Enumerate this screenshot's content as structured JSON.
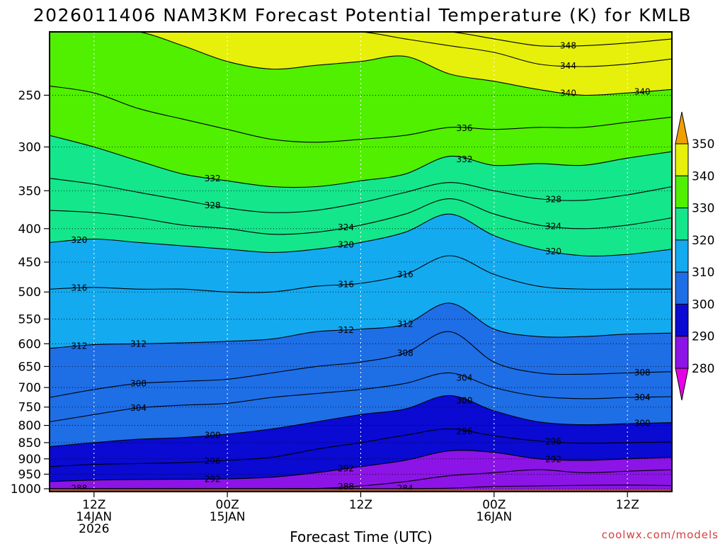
{
  "chart_data": {
    "type": "contour",
    "title": "2026011406 NAM3KM Forecast Potential Temperature (K) for KMLB",
    "xlabel": "Forecast Time (UTC)",
    "ylabel": "",
    "ylim": [
      1010,
      200
    ],
    "y_scale": "log-pressure",
    "yticks": [
      250,
      300,
      350,
      400,
      450,
      500,
      550,
      600,
      650,
      700,
      750,
      800,
      850,
      900,
      950,
      1000
    ],
    "xlim": [
      0,
      84
    ],
    "xticks": [
      {
        "hour": 6,
        "label": [
          "12Z",
          "14JAN",
          "2026"
        ]
      },
      {
        "hour": 24,
        "label": [
          "00Z",
          "15JAN"
        ]
      },
      {
        "hour": 42,
        "label": [
          "12Z"
        ]
      },
      {
        "hour": 60,
        "label": [
          "00Z",
          "16JAN"
        ]
      },
      {
        "hour": 78,
        "label": [
          "12Z"
        ]
      }
    ],
    "colorbar": {
      "levels": [
        280,
        290,
        300,
        310,
        320,
        330,
        340,
        350
      ],
      "colors": [
        "#e600e6",
        "#8c14e6",
        "#0a0ad2",
        "#1e6ee6",
        "#14aaf0",
        "#14e68c",
        "#50f000",
        "#e6f00a",
        "#f0a000"
      ],
      "extend": "both"
    },
    "contour_interval": 4,
    "surface_color": "#a0522d",
    "series": [
      {
        "theta": 284,
        "p": [
          999,
          999,
          999,
          999,
          999,
          999,
          999,
          999,
          999,
          998,
          992,
          990,
          988,
          987,
          989
        ]
      },
      {
        "theta": 288,
        "p": [
          999,
          999,
          999,
          999,
          999,
          999,
          999,
          990,
          975,
          955,
          945,
          935,
          945,
          940,
          935
        ]
      },
      {
        "theta": 292,
        "p": [
          975,
          970,
          968,
          967,
          966,
          960,
          945,
          925,
          905,
          875,
          880,
          900,
          905,
          900,
          895
        ]
      },
      {
        "theta": 296,
        "p": [
          925,
          918,
          915,
          912,
          905,
          895,
          870,
          850,
          828,
          810,
          830,
          845,
          852,
          850,
          848
        ]
      },
      {
        "theta": 300,
        "p": [
          862,
          850,
          840,
          835,
          825,
          810,
          790,
          770,
          755,
          720,
          760,
          790,
          798,
          795,
          792
        ]
      },
      {
        "theta": 304,
        "p": [
          790,
          770,
          752,
          745,
          740,
          725,
          715,
          705,
          690,
          665,
          700,
          722,
          728,
          725,
          723
        ]
      },
      {
        "theta": 308,
        "p": [
          725,
          705,
          690,
          685,
          680,
          665,
          650,
          640,
          620,
          575,
          640,
          665,
          668,
          665,
          662
        ]
      },
      {
        "theta": 312,
        "p": [
          610,
          602,
          600,
          598,
          595,
          590,
          575,
          570,
          560,
          520,
          570,
          585,
          585,
          580,
          578
        ]
      },
      {
        "theta": 316,
        "p": [
          495,
          492,
          495,
          495,
          500,
          500,
          490,
          485,
          470,
          440,
          470,
          490,
          495,
          495,
          495
        ]
      },
      {
        "theta": 320,
        "p": [
          420,
          415,
          420,
          425,
          430,
          435,
          430,
          420,
          405,
          380,
          410,
          430,
          440,
          438,
          430
        ]
      },
      {
        "theta": 324,
        "p": [
          375,
          378,
          385,
          395,
          400,
          408,
          405,
          395,
          380,
          360,
          380,
          395,
          400,
          395,
          385
        ]
      },
      {
        "theta": 328,
        "p": [
          335,
          342,
          352,
          362,
          372,
          378,
          375,
          365,
          352,
          340,
          350,
          360,
          362,
          355,
          345
        ]
      },
      {
        "theta": 332,
        "p": [
          288,
          300,
          315,
          330,
          338,
          345,
          345,
          338,
          330,
          310,
          320,
          318,
          320,
          312,
          305
        ]
      },
      {
        "theta": 336,
        "p": [
          242,
          248,
          262,
          272,
          282,
          292,
          295,
          292,
          288,
          280,
          282,
          280,
          280,
          275,
          270
        ]
      },
      {
        "theta": 340,
        "p": [
          200,
          200,
          200,
          210,
          222,
          228,
          225,
          222,
          218,
          232,
          238,
          245,
          250,
          248,
          245
        ]
      },
      {
        "theta": 344,
        "p": [
          200,
          200,
          200,
          200,
          200,
          200,
          200,
          200,
          205,
          210,
          215,
          224,
          226,
          224,
          220
        ]
      },
      {
        "theta": 348,
        "p": [
          200,
          200,
          200,
          200,
          200,
          200,
          200,
          200,
          200,
          200,
          205,
          210,
          210,
          208,
          205
        ]
      }
    ],
    "series_hours": [
      0,
      6,
      12,
      18,
      24,
      30,
      36,
      42,
      48,
      54,
      60,
      66,
      72,
      78,
      84
    ]
  },
  "contour_labels": [
    "348",
    "344",
    "340",
    "340",
    "336",
    "332",
    "332",
    "328",
    "328",
    "324",
    "324",
    "320",
    "320",
    "320",
    "316",
    "316",
    "316",
    "312",
    "312",
    "312",
    "312",
    "308",
    "308",
    "308",
    "304",
    "304",
    "304",
    "300",
    "300",
    "300",
    "296",
    "296",
    "296",
    "292",
    "292",
    "292",
    "288",
    "288",
    "284"
  ],
  "watermark": "coolwx.com/models"
}
